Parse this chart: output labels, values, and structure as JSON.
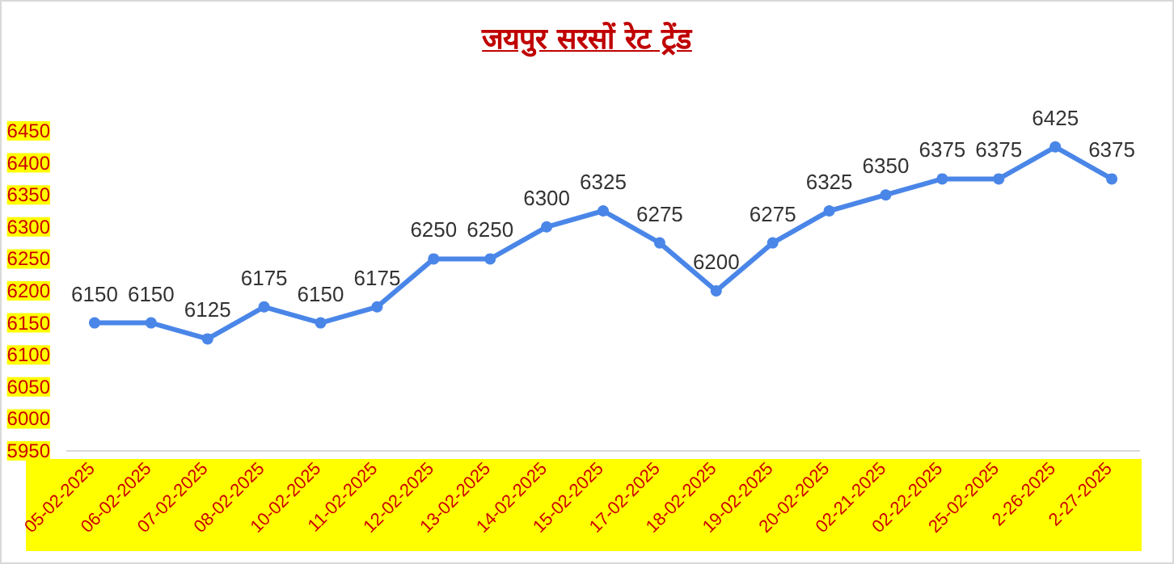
{
  "chart_data": {
    "type": "line",
    "title": "जयपुर सरसों रेट ट्रेंड",
    "categories": [
      "05-02-2025",
      "06-02-2025",
      "07-02-2025",
      "08-02-2025",
      "10-02-2025",
      "11-02-2025",
      "12-02-2025",
      "13-02-2025",
      "14-02-2025",
      "15-02-2025",
      "17-02-2025",
      "18-02-2025",
      "19-02-2025",
      "20-02-2025",
      "02-21-2025",
      "02-22-2025",
      "25-02-2025",
      "2-26-2025",
      "2-27-2025"
    ],
    "series": [
      {
        "color": "#4a86e8",
        "values": [
          6150,
          6150,
          6125,
          6175,
          6150,
          6175,
          6250,
          6250,
          6300,
          6325,
          6275,
          6200,
          6275,
          6325,
          6350,
          6375,
          6375,
          6425,
          6375
        ]
      }
    ],
    "ylim": [
      5950,
      6450
    ],
    "yticks": [
      5950,
      6000,
      6050,
      6100,
      6150,
      6200,
      6250,
      6300,
      6350,
      6400,
      6450
    ],
    "grid": false,
    "marker": "circle",
    "line_style": "solid",
    "data_labels": true
  }
}
